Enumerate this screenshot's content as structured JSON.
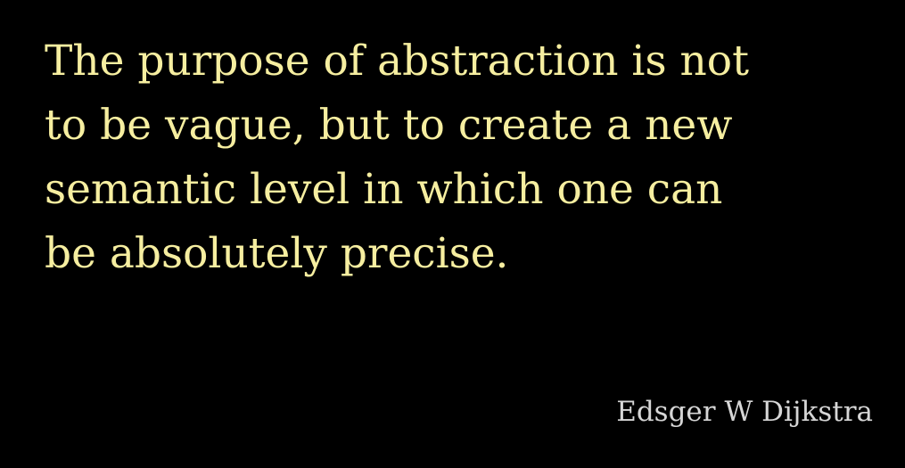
{
  "slide": {
    "background_color": "#000000",
    "quote_color": "#f6eea0",
    "author_color": "#d6d6d6",
    "quote_lines": [
      "The purpose of abstraction is not",
      "to be vague, but to create a new",
      "semantic level in which one can",
      "be absolutely precise."
    ],
    "author": "Edsger W Dijkstra"
  }
}
